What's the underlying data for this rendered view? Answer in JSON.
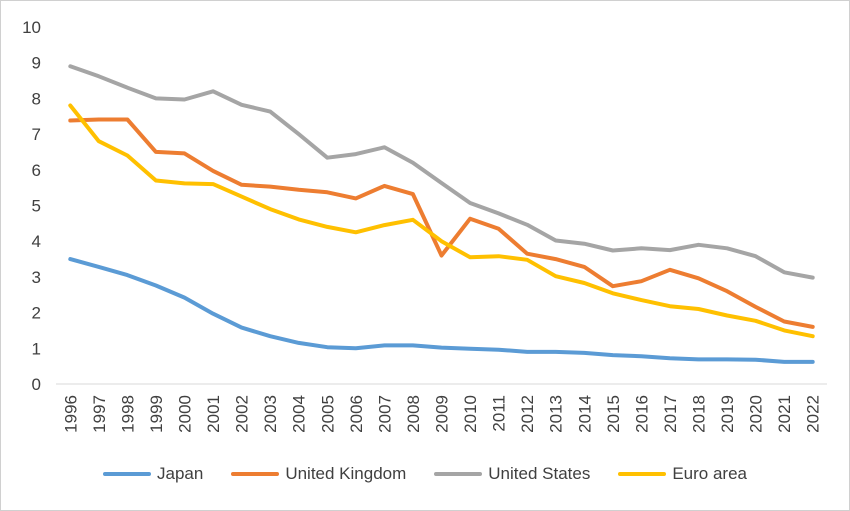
{
  "chart_data": {
    "type": "line",
    "title": "",
    "xlabel": "",
    "ylabel": "",
    "ylim": [
      0,
      10
    ],
    "yticks": [
      "0",
      "1",
      "2",
      "3",
      "4",
      "5",
      "6",
      "7",
      "8",
      "9",
      "10"
    ],
    "grid": false,
    "legend_position": "bottom",
    "categories": [
      "1996",
      "1997",
      "1998",
      "1999",
      "2000",
      "2001",
      "2002",
      "2003",
      "2004",
      "2005",
      "2006",
      "2007",
      "2008",
      "2009",
      "2010",
      "2011",
      "2012",
      "2013",
      "2014",
      "2015",
      "2016",
      "2017",
      "2018",
      "2019",
      "2020",
      "2021",
      "2022"
    ],
    "series": [
      {
        "name": "Japan",
        "color": "#5B9BD5",
        "values": [
          3.5,
          3.28,
          3.05,
          2.76,
          2.42,
          1.97,
          1.58,
          1.34,
          1.15,
          1.03,
          1.0,
          1.08,
          1.08,
          1.02,
          0.99,
          0.96,
          0.9,
          0.9,
          0.87,
          0.81,
          0.78,
          0.72,
          0.69,
          0.69,
          0.68,
          0.62,
          0.62
        ]
      },
      {
        "name": "United Kingdom",
        "color": "#ED7D31",
        "values": [
          7.38,
          7.41,
          7.41,
          6.5,
          6.46,
          5.97,
          5.58,
          5.53,
          5.44,
          5.37,
          5.2,
          5.55,
          5.32,
          3.6,
          4.63,
          4.35,
          3.65,
          3.5,
          3.28,
          2.74,
          2.88,
          3.2,
          2.96,
          2.6,
          2.16,
          1.75,
          1.6
        ]
      },
      {
        "name": "United States",
        "color": "#A5A5A5",
        "values": [
          8.9,
          8.62,
          8.3,
          8.0,
          7.97,
          8.2,
          7.82,
          7.63,
          7.0,
          6.34,
          6.44,
          6.63,
          6.2,
          5.63,
          5.07,
          4.78,
          4.46,
          4.02,
          3.93,
          3.74,
          3.8,
          3.75,
          3.9,
          3.8,
          3.58,
          3.13,
          2.98
        ]
      },
      {
        "name": "Euro area",
        "color": "#FFC000",
        "values": [
          7.8,
          6.8,
          6.4,
          5.7,
          5.62,
          5.6,
          5.25,
          4.9,
          4.61,
          4.4,
          4.25,
          4.45,
          4.6,
          4.0,
          3.55,
          3.58,
          3.48,
          3.02,
          2.83,
          2.54,
          2.35,
          2.18,
          2.1,
          1.92,
          1.77,
          1.5,
          1.34
        ]
      }
    ]
  }
}
